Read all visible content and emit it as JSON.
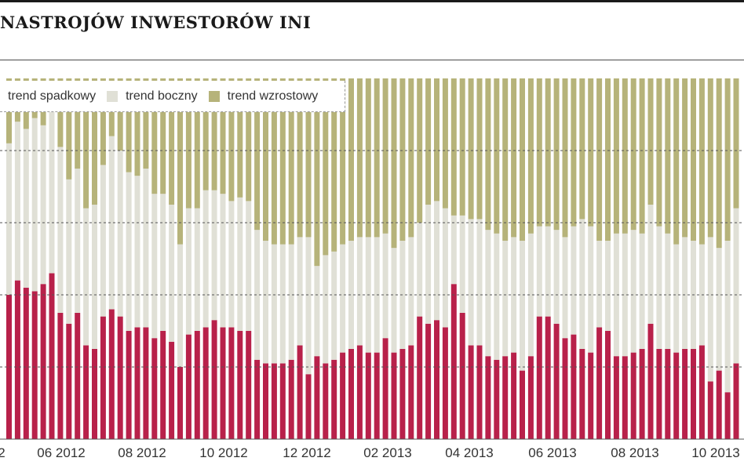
{
  "title": "NASTROJÓW INWESTORÓW INI",
  "colors": {
    "spadkowy": "#b8214a",
    "boczny": "#e0e0d6",
    "wzrostowy": "#b6b37a",
    "grid": "#555555"
  },
  "chart_data": {
    "type": "bar",
    "stacked": true,
    "grid": true,
    "legend_position": "top-left",
    "ylim": [
      0,
      100
    ],
    "legend": [
      "trend spadkowy",
      "trend boczny",
      "trend wzrostowy"
    ],
    "x_tick_labels": [
      "2",
      "06 2012",
      "08 2012",
      "10 2012",
      "12 2012",
      "02 2013",
      "04 2013",
      "06 2013",
      "08 2013",
      "10 2013"
    ],
    "series": [
      {
        "name": "trend spadkowy",
        "values": [
          40,
          44,
          42,
          41,
          43,
          46,
          35,
          32,
          35,
          26,
          25,
          34,
          36,
          34,
          30,
          31,
          31,
          28,
          30,
          27,
          20,
          29,
          30,
          31,
          33,
          31,
          31,
          30,
          30,
          22,
          21,
          21,
          21,
          22,
          26,
          18,
          23,
          21,
          22,
          24,
          25,
          26,
          24,
          24,
          28,
          24,
          25,
          26,
          34,
          32,
          33,
          31,
          43,
          35,
          26,
          26,
          23,
          22,
          23,
          24,
          19,
          23,
          34,
          34,
          32,
          28,
          29,
          25,
          24,
          31,
          30,
          23,
          23,
          24,
          25,
          32,
          25,
          25,
          24,
          25,
          25,
          26,
          16,
          19,
          13,
          21
        ]
      },
      {
        "name": "trend boczny",
        "values": [
          42,
          44,
          44,
          48,
          44,
          46,
          46,
          40,
          40,
          38,
          40,
          42,
          48,
          46,
          44,
          42,
          44,
          40,
          38,
          38,
          34,
          35,
          34,
          38,
          36,
          37,
          35,
          37,
          36,
          36,
          34,
          33,
          33,
          32,
          30,
          38,
          25,
          30,
          30,
          30,
          30,
          30,
          32,
          32,
          29,
          29,
          30,
          30,
          26,
          33,
          33,
          33,
          19,
          27,
          35,
          35,
          35,
          35,
          32,
          32,
          36,
          34,
          25,
          25,
          26,
          28,
          30,
          36,
          35,
          24,
          25,
          34,
          34,
          34,
          32,
          33,
          34,
          32,
          30,
          31,
          30,
          28,
          40,
          34,
          42,
          43
        ]
      },
      {
        "name": "trend wzrostowy",
        "values": [
          18,
          12,
          14,
          11,
          13,
          8,
          19,
          28,
          25,
          36,
          35,
          24,
          16,
          20,
          26,
          27,
          25,
          32,
          32,
          35,
          46,
          36,
          36,
          31,
          31,
          32,
          34,
          33,
          34,
          42,
          45,
          46,
          46,
          46,
          44,
          44,
          52,
          49,
          48,
          46,
          45,
          44,
          44,
          44,
          43,
          47,
          45,
          44,
          40,
          35,
          34,
          36,
          38,
          38,
          39,
          39,
          42,
          43,
          45,
          44,
          45,
          43,
          41,
          41,
          42,
          44,
          41,
          39,
          41,
          45,
          45,
          43,
          43,
          42,
          43,
          35,
          41,
          43,
          46,
          44,
          45,
          46,
          44,
          47,
          45,
          36
        ]
      }
    ]
  }
}
